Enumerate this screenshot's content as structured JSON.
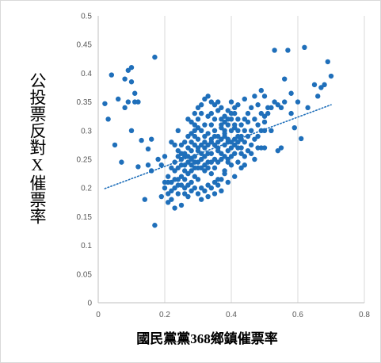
{
  "chart_data": {
    "type": "scatter",
    "xlabel": "國民黨黨368鄉鎮催票率",
    "ylabel": "公投票反對X催票率",
    "xlim": [
      0,
      0.8
    ],
    "ylim": [
      0,
      0.5
    ],
    "xticks": [
      "0",
      "0.2",
      "0.4",
      "0.6",
      "0.8"
    ],
    "yticks": [
      "0",
      "0.05",
      "0.1",
      "0.15",
      "0.2",
      "0.25",
      "0.3",
      "0.35",
      "0.4",
      "0.45",
      "0.5"
    ],
    "grid": "vertical",
    "marker_color": "#1f6fba",
    "trendline": {
      "type": "linear",
      "style": "dotted",
      "color": "#1f6fba",
      "x": [
        0.02,
        0.7
      ],
      "y": [
        0.199,
        0.345
      ]
    },
    "points": [
      [
        0.02,
        0.347
      ],
      [
        0.04,
        0.397
      ],
      [
        0.05,
        0.275
      ],
      [
        0.06,
        0.355
      ],
      [
        0.07,
        0.245
      ],
      [
        0.08,
        0.34
      ],
      [
        0.09,
        0.405
      ],
      [
        0.1,
        0.41
      ],
      [
        0.1,
        0.3
      ],
      [
        0.11,
        0.35
      ],
      [
        0.12,
        0.35
      ],
      [
        0.12,
        0.237
      ],
      [
        0.13,
        0.283
      ],
      [
        0.15,
        0.24
      ],
      [
        0.15,
        0.268
      ],
      [
        0.16,
        0.285
      ],
      [
        0.16,
        0.23
      ],
      [
        0.17,
        0.428
      ],
      [
        0.17,
        0.135
      ],
      [
        0.11,
        0.365
      ],
      [
        0.09,
        0.35
      ],
      [
        0.03,
        0.32
      ],
      [
        0.14,
        0.18
      ],
      [
        0.1,
        0.385
      ],
      [
        0.08,
        0.39
      ],
      [
        0.18,
        0.25
      ],
      [
        0.19,
        0.24
      ],
      [
        0.2,
        0.255
      ],
      [
        0.21,
        0.22
      ],
      [
        0.22,
        0.28
      ],
      [
        0.23,
        0.23
      ],
      [
        0.24,
        0.3
      ],
      [
        0.25,
        0.26
      ],
      [
        0.26,
        0.24
      ],
      [
        0.27,
        0.32
      ],
      [
        0.28,
        0.25
      ],
      [
        0.29,
        0.29
      ],
      [
        0.3,
        0.27
      ],
      [
        0.31,
        0.33
      ],
      [
        0.32,
        0.28
      ],
      [
        0.33,
        0.26
      ],
      [
        0.34,
        0.31
      ],
      [
        0.35,
        0.29
      ],
      [
        0.36,
        0.27
      ],
      [
        0.37,
        0.32
      ],
      [
        0.38,
        0.3
      ],
      [
        0.39,
        0.28
      ],
      [
        0.4,
        0.35
      ],
      [
        0.41,
        0.31
      ],
      [
        0.42,
        0.27
      ],
      [
        0.43,
        0.26
      ],
      [
        0.44,
        0.24
      ],
      [
        0.45,
        0.33
      ],
      [
        0.46,
        0.34
      ],
      [
        0.47,
        0.36
      ],
      [
        0.48,
        0.31
      ],
      [
        0.49,
        0.37
      ],
      [
        0.5,
        0.36
      ],
      [
        0.51,
        0.33
      ],
      [
        0.52,
        0.3
      ],
      [
        0.53,
        0.35
      ],
      [
        0.54,
        0.265
      ],
      [
        0.55,
        0.34
      ],
      [
        0.56,
        0.39
      ],
      [
        0.57,
        0.44
      ],
      [
        0.58,
        0.365
      ],
      [
        0.59,
        0.305
      ],
      [
        0.6,
        0.35
      ],
      [
        0.61,
        0.286
      ],
      [
        0.62,
        0.445
      ],
      [
        0.63,
        0.34
      ],
      [
        0.65,
        0.38
      ],
      [
        0.66,
        0.36
      ],
      [
        0.67,
        0.375
      ],
      [
        0.68,
        0.38
      ],
      [
        0.69,
        0.42
      ],
      [
        0.7,
        0.395
      ],
      [
        0.55,
        0.27
      ],
      [
        0.53,
        0.44
      ],
      [
        0.5,
        0.27
      ],
      [
        0.21,
        0.175
      ],
      [
        0.22,
        0.18
      ],
      [
        0.23,
        0.165
      ],
      [
        0.24,
        0.19
      ],
      [
        0.25,
        0.17
      ],
      [
        0.26,
        0.2
      ],
      [
        0.27,
        0.185
      ],
      [
        0.28,
        0.21
      ],
      [
        0.29,
        0.22
      ],
      [
        0.3,
        0.215
      ],
      [
        0.31,
        0.2
      ],
      [
        0.32,
        0.23
      ],
      [
        0.33,
        0.205
      ],
      [
        0.34,
        0.225
      ],
      [
        0.35,
        0.19
      ],
      [
        0.36,
        0.215
      ],
      [
        0.37,
        0.195
      ],
      [
        0.38,
        0.225
      ],
      [
        0.39,
        0.21
      ],
      [
        0.4,
        0.24
      ],
      [
        0.41,
        0.22
      ],
      [
        0.42,
        0.245
      ],
      [
        0.43,
        0.235
      ],
      [
        0.44,
        0.255
      ],
      [
        0.2,
        0.2
      ],
      [
        0.21,
        0.21
      ],
      [
        0.22,
        0.195
      ],
      [
        0.23,
        0.2
      ],
      [
        0.24,
        0.215
      ],
      [
        0.25,
        0.22
      ],
      [
        0.26,
        0.23
      ],
      [
        0.27,
        0.225
      ],
      [
        0.28,
        0.24
      ],
      [
        0.29,
        0.235
      ],
      [
        0.3,
        0.245
      ],
      [
        0.31,
        0.25
      ],
      [
        0.32,
        0.255
      ],
      [
        0.33,
        0.245
      ],
      [
        0.34,
        0.26
      ],
      [
        0.35,
        0.25
      ],
      [
        0.36,
        0.265
      ],
      [
        0.37,
        0.26
      ],
      [
        0.38,
        0.275
      ],
      [
        0.39,
        0.265
      ],
      [
        0.4,
        0.28
      ],
      [
        0.41,
        0.275
      ],
      [
        0.42,
        0.29
      ],
      [
        0.43,
        0.285
      ],
      [
        0.22,
        0.235
      ],
      [
        0.23,
        0.245
      ],
      [
        0.24,
        0.235
      ],
      [
        0.25,
        0.25
      ],
      [
        0.26,
        0.255
      ],
      [
        0.27,
        0.245
      ],
      [
        0.28,
        0.265
      ],
      [
        0.29,
        0.255
      ],
      [
        0.3,
        0.285
      ],
      [
        0.31,
        0.275
      ],
      [
        0.32,
        0.29
      ],
      [
        0.33,
        0.295
      ],
      [
        0.34,
        0.28
      ],
      [
        0.35,
        0.3
      ],
      [
        0.36,
        0.29
      ],
      [
        0.37,
        0.305
      ],
      [
        0.38,
        0.295
      ],
      [
        0.39,
        0.31
      ],
      [
        0.4,
        0.3
      ],
      [
        0.41,
        0.305
      ],
      [
        0.42,
        0.32
      ],
      [
        0.43,
        0.31
      ],
      [
        0.44,
        0.3
      ],
      [
        0.45,
        0.315
      ],
      [
        0.28,
        0.315
      ],
      [
        0.29,
        0.31
      ],
      [
        0.3,
        0.32
      ],
      [
        0.31,
        0.3
      ],
      [
        0.32,
        0.31
      ],
      [
        0.33,
        0.325
      ],
      [
        0.34,
        0.33
      ],
      [
        0.35,
        0.345
      ],
      [
        0.36,
        0.35
      ],
      [
        0.37,
        0.34
      ],
      [
        0.38,
        0.325
      ],
      [
        0.39,
        0.335
      ],
      [
        0.4,
        0.32
      ],
      [
        0.41,
        0.33
      ],
      [
        0.42,
        0.345
      ],
      [
        0.44,
        0.355
      ],
      [
        0.45,
        0.29
      ],
      [
        0.46,
        0.3
      ],
      [
        0.47,
        0.32
      ],
      [
        0.48,
        0.345
      ],
      [
        0.49,
        0.33
      ],
      [
        0.5,
        0.315
      ],
      [
        0.51,
        0.34
      ],
      [
        0.46,
        0.275
      ],
      [
        0.26,
        0.215
      ],
      [
        0.27,
        0.205
      ],
      [
        0.28,
        0.195
      ],
      [
        0.29,
        0.2
      ],
      [
        0.3,
        0.19
      ],
      [
        0.31,
        0.18
      ],
      [
        0.32,
        0.195
      ],
      [
        0.33,
        0.185
      ],
      [
        0.34,
        0.2
      ],
      [
        0.35,
        0.21
      ],
      [
        0.36,
        0.205
      ],
      [
        0.37,
        0.215
      ],
      [
        0.38,
        0.23
      ],
      [
        0.39,
        0.245
      ],
      [
        0.4,
        0.255
      ],
      [
        0.41,
        0.26
      ],
      [
        0.27,
        0.27
      ],
      [
        0.28,
        0.28
      ],
      [
        0.29,
        0.275
      ],
      [
        0.3,
        0.265
      ],
      [
        0.31,
        0.26
      ],
      [
        0.32,
        0.27
      ],
      [
        0.33,
        0.275
      ],
      [
        0.34,
        0.285
      ],
      [
        0.35,
        0.275
      ],
      [
        0.36,
        0.28
      ],
      [
        0.37,
        0.285
      ],
      [
        0.38,
        0.29
      ],
      [
        0.39,
        0.285
      ],
      [
        0.4,
        0.27
      ],
      [
        0.41,
        0.285
      ],
      [
        0.42,
        0.28
      ],
      [
        0.24,
        0.255
      ],
      [
        0.25,
        0.24
      ],
      [
        0.26,
        0.26
      ],
      [
        0.27,
        0.255
      ],
      [
        0.28,
        0.23
      ],
      [
        0.29,
        0.245
      ],
      [
        0.3,
        0.235
      ],
      [
        0.31,
        0.235
      ],
      [
        0.32,
        0.24
      ],
      [
        0.33,
        0.235
      ],
      [
        0.34,
        0.245
      ],
      [
        0.35,
        0.235
      ],
      [
        0.36,
        0.245
      ],
      [
        0.37,
        0.25
      ],
      [
        0.38,
        0.255
      ],
      [
        0.39,
        0.25
      ],
      [
        0.19,
        0.185
      ],
      [
        0.2,
        0.21
      ],
      [
        0.21,
        0.19
      ],
      [
        0.22,
        0.21
      ],
      [
        0.23,
        0.215
      ],
      [
        0.24,
        0.205
      ],
      [
        0.25,
        0.205
      ],
      [
        0.26,
        0.19
      ],
      [
        0.43,
        0.27
      ],
      [
        0.44,
        0.28
      ],
      [
        0.45,
        0.265
      ],
      [
        0.46,
        0.26
      ],
      [
        0.47,
        0.285
      ],
      [
        0.48,
        0.29
      ],
      [
        0.49,
        0.27
      ],
      [
        0.5,
        0.3
      ],
      [
        0.29,
        0.33
      ],
      [
        0.3,
        0.34
      ],
      [
        0.31,
        0.345
      ],
      [
        0.32,
        0.355
      ],
      [
        0.33,
        0.36
      ],
      [
        0.34,
        0.35
      ],
      [
        0.35,
        0.32
      ],
      [
        0.36,
        0.335
      ],
      [
        0.37,
        0.31
      ],
      [
        0.38,
        0.315
      ],
      [
        0.39,
        0.32
      ],
      [
        0.4,
        0.33
      ],
      [
        0.41,
        0.34
      ],
      [
        0.42,
        0.3
      ],
      [
        0.43,
        0.29
      ],
      [
        0.44,
        0.32
      ],
      [
        0.23,
        0.275
      ],
      [
        0.24,
        0.265
      ],
      [
        0.25,
        0.275
      ],
      [
        0.26,
        0.28
      ],
      [
        0.27,
        0.29
      ],
      [
        0.28,
        0.295
      ],
      [
        0.29,
        0.3
      ],
      [
        0.3,
        0.305
      ],
      [
        0.47,
        0.25
      ],
      [
        0.48,
        0.27
      ],
      [
        0.49,
        0.3
      ],
      [
        0.5,
        0.325
      ],
      [
        0.52,
        0.34
      ],
      [
        0.54,
        0.345
      ],
      [
        0.56,
        0.35
      ],
      [
        0.58,
        0.33
      ]
    ]
  }
}
